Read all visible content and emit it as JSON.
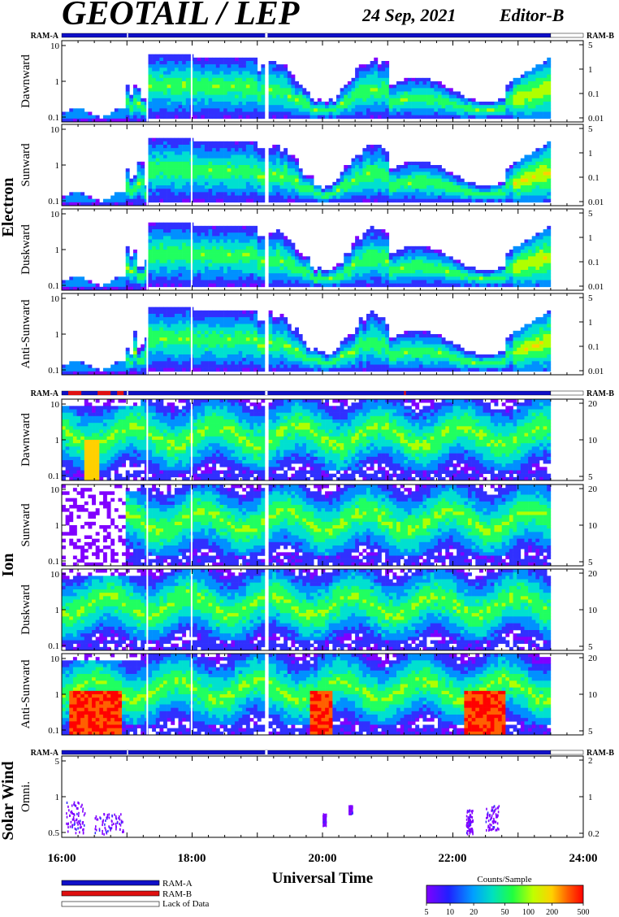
{
  "header": {
    "title": "GEOTAIL / LEP",
    "date": "24 Sep, 2021",
    "editor": "Editor-B"
  },
  "ram_labels": {
    "left": "RAM-A",
    "right": "RAM-B"
  },
  "colors": {
    "ram_a": "#1010c8",
    "ram_b": "#e01010",
    "lack_of_data": "#ffffff",
    "colorbar": [
      "#8000ff",
      "#2020ff",
      "#00a0ff",
      "#00e0c0",
      "#20ff40",
      "#c0ff00",
      "#ffd000",
      "#ff6000",
      "#ff0000"
    ]
  },
  "chart_data": {
    "type": "heatmap",
    "xlabel": "Universal Time",
    "x_ticks": [
      "16:00",
      "18:00",
      "20:00",
      "22:00",
      "24:00"
    ],
    "x_range": [
      "16:00",
      "24:00"
    ],
    "data_end": "23:30",
    "groups": [
      {
        "name": "Electron",
        "panels": [
          {
            "name": "Dawnward",
            "left_ticks": [
              "10",
              "1",
              "0.1"
            ],
            "right_ticks": [
              "5",
              "1",
              "0.1",
              "0.01"
            ]
          },
          {
            "name": "Sunward",
            "left_ticks": [
              "10",
              "1",
              "0.1"
            ],
            "right_ticks": [
              "5",
              "1",
              "0.1",
              "0.01"
            ]
          },
          {
            "name": "Duskward",
            "left_ticks": [
              "10",
              "1",
              "0.1"
            ],
            "right_ticks": [
              "5",
              "1",
              "0.1",
              "0.01"
            ]
          },
          {
            "name": "Anti-Sunward",
            "left_ticks": [
              "10",
              "1",
              "0.1"
            ],
            "right_ticks": [
              "5",
              "1",
              "0.1",
              "0.01"
            ]
          }
        ]
      },
      {
        "name": "Ion",
        "panels": [
          {
            "name": "Dawnward",
            "left_ticks": [
              "10",
              "1",
              "0.1"
            ],
            "right_ticks": [
              "20",
              "10",
              "5"
            ]
          },
          {
            "name": "Sunward",
            "left_ticks": [
              "10",
              "1",
              "0.1"
            ],
            "right_ticks": [
              "20",
              "10",
              "5"
            ]
          },
          {
            "name": "Duskward",
            "left_ticks": [
              "10",
              "1",
              "0.1"
            ],
            "right_ticks": [
              "20",
              "10",
              "5"
            ]
          },
          {
            "name": "Anti-Sunward",
            "left_ticks": [
              "10",
              "1",
              "0.1"
            ],
            "right_ticks": [
              "20",
              "10",
              "5"
            ]
          }
        ]
      },
      {
        "name": "Solar Wind",
        "panels": [
          {
            "name": "Omni.",
            "left_ticks": [
              "5",
              "1",
              "0.5"
            ],
            "right_ticks": [
              "2",
              "1",
              "0.2"
            ]
          }
        ]
      }
    ],
    "colorbar": {
      "title": "Counts/Sample",
      "ticks": [
        "5",
        "10",
        "20",
        "50",
        "100",
        "200",
        "500"
      ],
      "scale": "log"
    }
  },
  "legend": [
    {
      "label": "RAM-A",
      "color": "#1010c8"
    },
    {
      "label": "RAM-B",
      "color": "#e01010"
    },
    {
      "label": "Lack of Data",
      "color": "#ffffff"
    }
  ]
}
